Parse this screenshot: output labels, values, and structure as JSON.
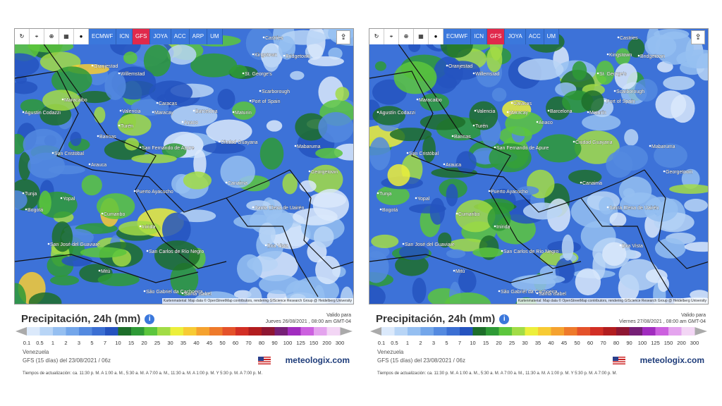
{
  "panels": [
    {
      "toolbar": [
        "ECMWF",
        "ICN",
        "GFS",
        "JOYA",
        "ACC",
        "ARP",
        "UM"
      ],
      "active_model": "GFS",
      "places": [
        "Castries",
        "Kingstown",
        "Bridgetown",
        "Oranjestad",
        "Willemstad",
        "St. George's",
        "Maracaibo",
        "Scarborough",
        "Caracas",
        "Port of Spain",
        "Agustín Codazzi",
        "Valencia",
        "Maracay",
        "Barcelona",
        "Maturín",
        "Anaco",
        "Turén",
        "Barinas",
        "Ciudad Guayana",
        "San Fernando de Apure",
        "San Cristóbal",
        "Mabaruma",
        "Arauca",
        "Georgetown",
        "Puerto Ayacucho",
        "Canaima",
        "Tunja",
        "Yopal",
        "Bogotá",
        "Cumaribo",
        "Santa Elena de Uairén",
        "Inírida",
        "San José del Guaviare",
        "Boa Vista",
        "San Carlos de Río Negro",
        "Mitú",
        "São Gabriel da Cachoeira",
        "Santa Isabel"
      ],
      "attribution": "Kartenmaterial: Map data © OpenStreetMap contributors, rendering GIScience Research Group @ Heidelberg University",
      "title": "Precipitación, 24h (mm)",
      "valid_label": "Valido para",
      "valid_date": "Jueves 26/08/2021 , 08:00 am GMT-04",
      "scale": [
        0.1,
        0.5,
        1,
        2,
        3,
        5,
        7,
        10,
        15,
        20,
        25,
        30,
        35,
        40,
        45,
        50,
        60,
        70,
        80,
        90,
        100,
        125,
        150,
        200,
        300
      ],
      "region": "Venezuela",
      "model_run": "GFS (15 días) del 23/08/2021 / 06z",
      "brand": "meteologix.com",
      "update_times": "Tiempos de actualización: ca. 11:30 p. M. A 1:00 a. M., 5:30 a. M. A 7:00 a. M., 11:30 a. M. A 1:00 p. M. Y 5:30 p. M. A 7:00 p. M."
    },
    {
      "toolbar": [
        "ECMWF",
        "ICN",
        "GFS",
        "JOYA",
        "ACC",
        "UM"
      ],
      "active_model": "GFS",
      "places": [
        "Castries",
        "Kingstown",
        "Bridgetown",
        "Oranjestad",
        "Willemstad",
        "St. George's",
        "Maracaibo",
        "Scarborough",
        "Caracas",
        "Port of Spain",
        "Agustín Codazzi",
        "Valencia",
        "Maracay",
        "Barcelona",
        "Maturín",
        "Anaco",
        "Turén",
        "Barinas",
        "Ciudad Guayana",
        "San Fernando de Apure",
        "San Cristóbal",
        "Mabaruma",
        "Arauca",
        "Georgetown",
        "Puerto Ayacucho",
        "Canaima",
        "Tunja",
        "Yopal",
        "Bogotá",
        "Cumaribo",
        "Santa Elena de Uairén",
        "Inírida",
        "San José del Guaviare",
        "Boa Vista",
        "San Carlos de Río Negro",
        "Mitú",
        "São Gabriel da Cachoeira",
        "Santa Isabel"
      ],
      "attribution": "Kartenmaterial: Map data © OpenStreetMap contributors, rendering GIScience Research Group @ Heidelberg University",
      "title": "Precipitación, 24h (mm)",
      "valid_label": "Valido para",
      "valid_date": "Viernes 27/08/2021 , 08:00 am GMT-04",
      "scale": [
        0.1,
        0.5,
        1,
        2,
        3,
        5,
        7,
        10,
        15,
        20,
        25,
        30,
        35,
        40,
        45,
        50,
        60,
        70,
        80,
        90,
        100,
        125,
        150,
        200,
        300
      ],
      "region": "Venezuela",
      "model_run": "GFS (15 días) del 23/08/2021 / 06z",
      "brand": "meteologix.com",
      "update_times": "Tiempos de actualización: ca. 11:30 p. M. A 1:00 a. M., 5:30 a. M. A 7:00 a. M., 11:30 a. M. A 1:00 p. M. Y 5:30 p. M. A 7:00 p. M."
    }
  ],
  "scale_colors": [
    "#dbe9fb",
    "#b8d5f6",
    "#95bff1",
    "#73a6ea",
    "#548ae0",
    "#3b6fd3",
    "#2553bf",
    "#1d6e2a",
    "#2e9a36",
    "#5cc63d",
    "#a2dc46",
    "#ecef3b",
    "#f7cb34",
    "#f5a22f",
    "#ee7a2b",
    "#e4522a",
    "#d22f25",
    "#b21d1f",
    "#8e1632",
    "#762076",
    "#a12cbf",
    "#cc60df",
    "#e4a4ee",
    "#f3d6f5"
  ]
}
